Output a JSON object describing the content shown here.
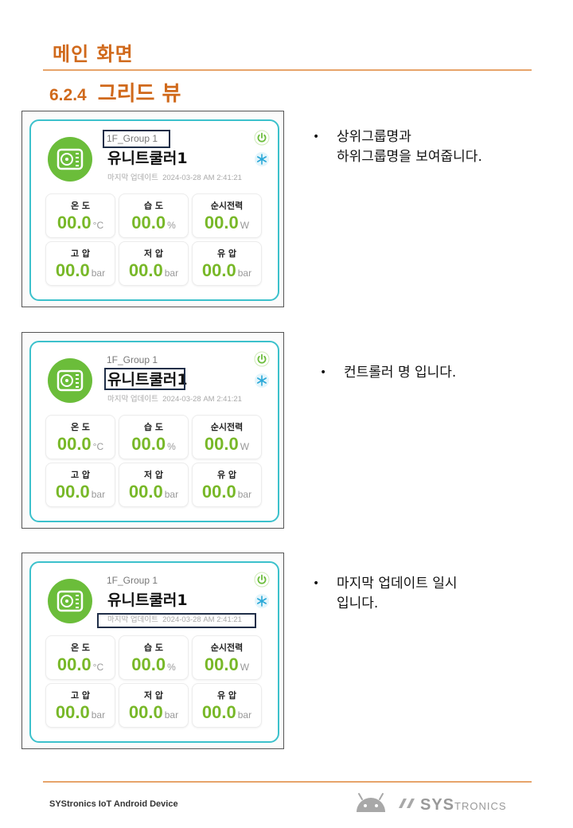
{
  "page": {
    "title": "메인 화면",
    "section_number": "6.2.4",
    "section_title": "그리드 뷰"
  },
  "card": {
    "group": "1F_Group 1",
    "unit_name": "유니트쿨러1",
    "last_update_label": "마지막 업데이트",
    "last_update": "2024-03-28 AM 2:41:21",
    "metrics": [
      {
        "label": "온 도",
        "value": "00.0",
        "unit": "°C"
      },
      {
        "label": "습 도",
        "value": "00.0",
        "unit": "%"
      },
      {
        "label": "순시전력",
        "value": "00.0",
        "unit": "W"
      },
      {
        "label": "고 압",
        "value": "00.0",
        "unit": "bar"
      },
      {
        "label": "저 압",
        "value": "00.0",
        "unit": "bar"
      },
      {
        "label": "유 압",
        "value": "00.0",
        "unit": "bar"
      }
    ]
  },
  "notes": [
    {
      "bullet": "•",
      "lines": [
        "상위그룹명과",
        "하위그룹명을 보여줍니다."
      ]
    },
    {
      "bullet": "•",
      "lines": [
        "컨트롤러 명 입니다."
      ]
    },
    {
      "bullet": "•",
      "lines": [
        "마지막 업데이트 일시",
        "입니다."
      ]
    }
  ],
  "footer": {
    "text": "SYStronics IoT Android Device",
    "brand_big": "SYS",
    "brand_small": "TRONICS"
  },
  "colors": {
    "accent": "#d0691b",
    "card_border": "#3cc1cc",
    "value_green": "#78b828",
    "highlight": "#1f2e48"
  }
}
